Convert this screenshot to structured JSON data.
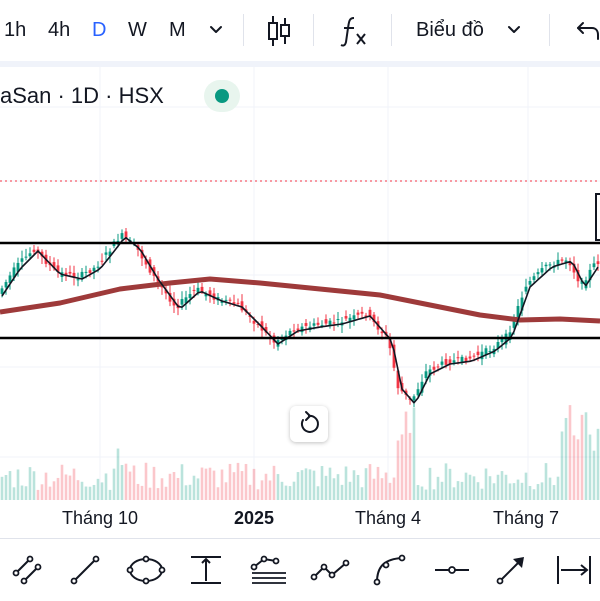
{
  "toolbar": {
    "intervals": [
      {
        "label": "1h",
        "active": false
      },
      {
        "label": "4h",
        "active": false
      },
      {
        "label": "D",
        "active": true
      },
      {
        "label": "W",
        "active": false
      },
      {
        "label": "M",
        "active": false
      }
    ],
    "interval_dropdown_icon": "chevron-down-icon",
    "chart_type_icon": "candlestick-icon",
    "indicators_icon": "function-fx-icon",
    "chart_menu_label": "Biểu đồ",
    "chart_menu_icon": "chevron-down-icon",
    "undo_icon": "undo-icon"
  },
  "chart": {
    "title": "aSan · 1D · HSX",
    "status_color": "#089981",
    "reset_icon": "reset-rotate-icon"
  },
  "xaxis": {
    "labels": [
      {
        "text": "Tháng 10",
        "bold": false
      },
      {
        "text": "2025",
        "bold": true
      },
      {
        "text": "Tháng 4",
        "bold": false
      },
      {
        "text": "Tháng 7",
        "bold": false
      }
    ]
  },
  "drawing_tools": [
    {
      "name": "trend-line-tools-icon"
    },
    {
      "name": "line-icon"
    },
    {
      "name": "shapes-icon"
    },
    {
      "name": "fib-retracement-icon"
    },
    {
      "name": "pattern-icon"
    },
    {
      "name": "path-icon"
    },
    {
      "name": "curve-icon"
    },
    {
      "name": "horizontal-line-icon"
    },
    {
      "name": "arrow-icon"
    },
    {
      "name": "measure-range-icon"
    }
  ],
  "colors": {
    "up": "#089981",
    "down": "#f23645",
    "ma_short": "#131722",
    "ma_long": "#9e3a3a",
    "level_lines": "#000000",
    "price_dotted": "#f23645",
    "active_interval": "#2962ff"
  }
}
